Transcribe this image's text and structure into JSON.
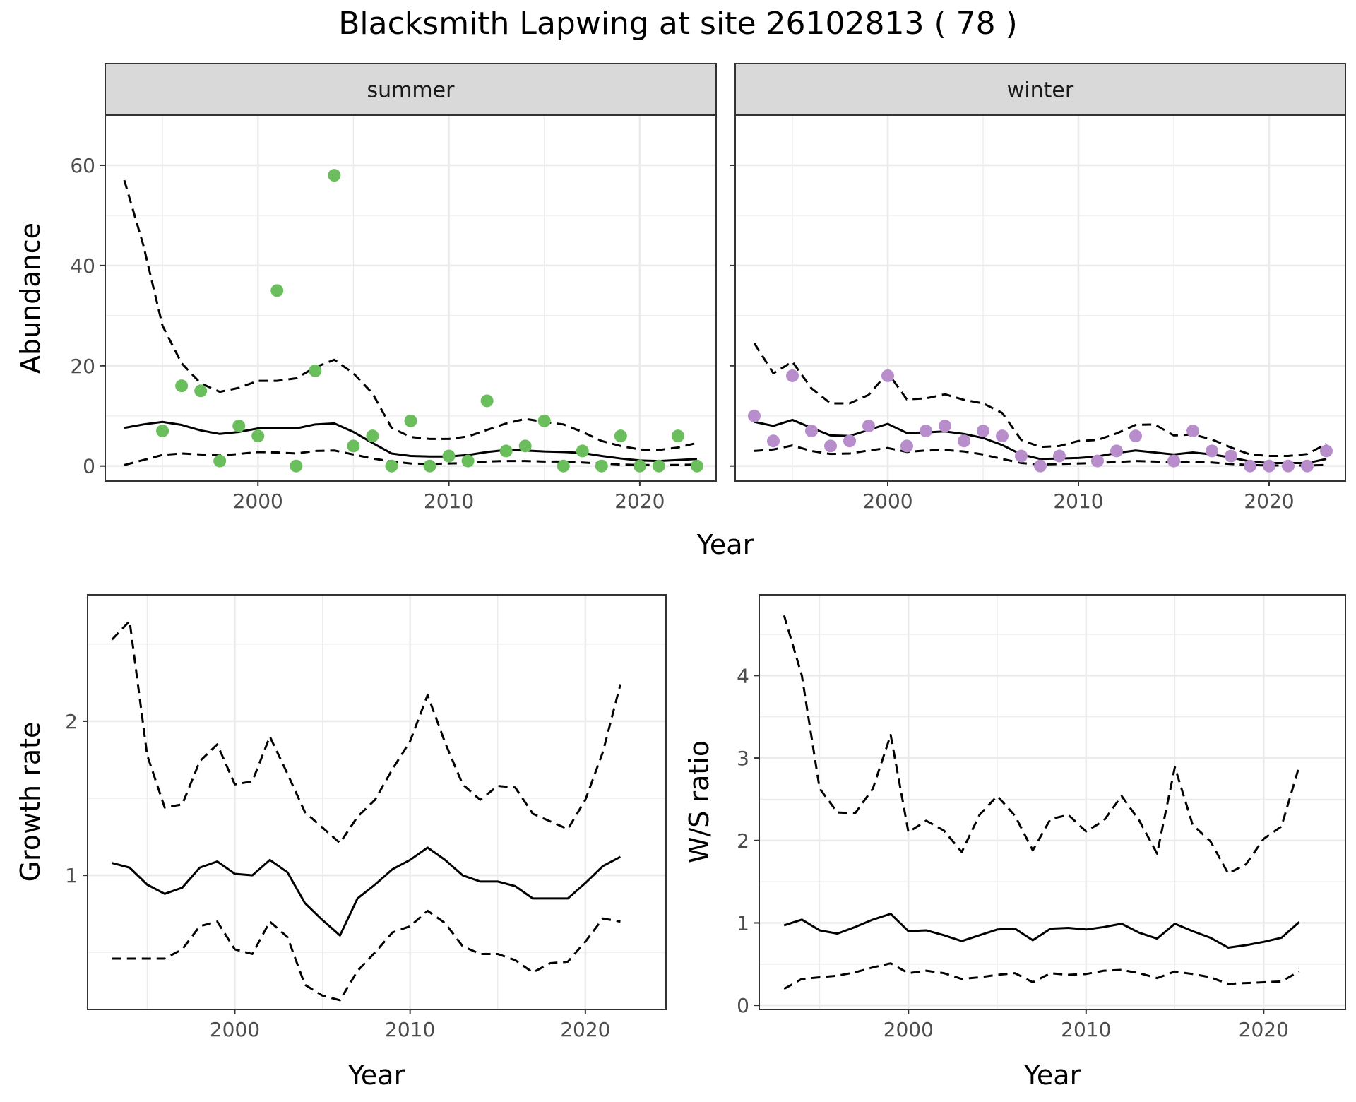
{
  "figure": {
    "title": "Blacksmith Lapwing at site 26102813 ( 78 )"
  },
  "colors": {
    "summer_points": "#6abf5c",
    "winter_points": "#b88dcc",
    "line": "#000000",
    "strip_fill": "#d9d9d9",
    "grid": "#ebebeb"
  },
  "chart_data": [
    {
      "id": "abundance",
      "type": "scatter",
      "ylabel": "Abundance",
      "xlabel": "Year",
      "xlim": [
        1992,
        2024
      ],
      "ylim": [
        -3,
        70
      ],
      "x_ticks": [
        2000,
        2010,
        2020
      ],
      "y_ticks": [
        0,
        20,
        40,
        60
      ],
      "grid": true,
      "facets": [
        {
          "name": "summer",
          "observed": {
            "x": [
              1995,
              1996,
              1997,
              1998,
              1999,
              2000,
              2001,
              2002,
              2003,
              2004,
              2005,
              2006,
              2007,
              2008,
              2009,
              2010,
              2011,
              2012,
              2013,
              2014,
              2015,
              2016,
              2017,
              2018,
              2019,
              2020,
              2021,
              2022,
              2023
            ],
            "y": [
              7,
              16,
              15,
              1,
              8,
              6,
              35,
              0,
              19,
              58,
              4,
              6,
              0,
              9,
              0,
              2,
              1,
              13,
              3,
              4,
              9,
              0,
              3,
              0,
              6,
              0,
              0,
              6,
              0
            ]
          },
          "fit": {
            "x": [
              1993,
              1994,
              1995,
              1996,
              1997,
              1998,
              1999,
              2000,
              2001,
              2002,
              2003,
              2004,
              2005,
              2006,
              2007,
              2008,
              2009,
              2010,
              2011,
              2012,
              2013,
              2014,
              2015,
              2016,
              2017,
              2018,
              2019,
              2020,
              2021,
              2022,
              2023
            ],
            "mean": [
              7.6,
              8.3,
              8.8,
              8.2,
              7.1,
              6.4,
              6.8,
              7.5,
              7.5,
              7.5,
              8.3,
              8.5,
              6.8,
              4.6,
              2.5,
              2.0,
              1.9,
              1.9,
              2.2,
              2.8,
              3.2,
              3.1,
              2.9,
              2.8,
              2.6,
              2.0,
              1.5,
              1.1,
              1.0,
              1.2,
              1.4
            ],
            "lower": [
              0.2,
              1.2,
              2.2,
              2.5,
              2.3,
              2.1,
              2.4,
              2.8,
              2.7,
              2.5,
              3.0,
              3.1,
              2.3,
              1.5,
              0.9,
              0.5,
              0.4,
              0.5,
              0.6,
              0.9,
              1.0,
              1.0,
              0.9,
              0.9,
              0.7,
              0.5,
              0.3,
              0.2,
              0.2,
              0.2,
              0.3
            ],
            "upper": [
              57,
              44,
              28,
              20.5,
              16.5,
              14.8,
              15.6,
              17.0,
              17.0,
              17.5,
              19.7,
              21.2,
              18.5,
              14.5,
              7.6,
              5.8,
              5.4,
              5.4,
              5.9,
              7.2,
              8.5,
              9.4,
              8.8,
              8.3,
              6.8,
              5.0,
              4.0,
              3.3,
              3.2,
              3.7,
              4.6
            ]
          }
        },
        {
          "name": "winter",
          "observed": {
            "x": [
              1993,
              1994,
              1995,
              1996,
              1997,
              1998,
              1999,
              2000,
              2001,
              2002,
              2003,
              2004,
              2005,
              2006,
              2007,
              2008,
              2009,
              2011,
              2012,
              2013,
              2015,
              2016,
              2017,
              2018,
              2019,
              2020,
              2021,
              2022,
              2023
            ],
            "y": [
              10,
              5,
              18,
              7,
              4,
              5,
              8,
              18,
              4,
              7,
              8,
              5,
              7,
              6,
              2,
              0,
              2,
              1,
              3,
              6,
              1,
              7,
              3,
              2,
              0,
              0,
              0,
              0,
              3
            ]
          },
          "fit": {
            "x": [
              1993,
              1994,
              1995,
              1996,
              1997,
              1998,
              1999,
              2000,
              2001,
              2002,
              2003,
              2004,
              2005,
              2006,
              2007,
              2008,
              2009,
              2010,
              2011,
              2012,
              2013,
              2014,
              2015,
              2016,
              2017,
              2018,
              2019,
              2020,
              2021,
              2022,
              2023
            ],
            "mean": [
              8.8,
              8.0,
              9.2,
              7.6,
              6.1,
              6.0,
              7.2,
              8.4,
              6.6,
              6.7,
              6.9,
              6.4,
              5.6,
              4.2,
              2.3,
              1.4,
              1.5,
              1.6,
              1.9,
              2.6,
              3.1,
              2.7,
              2.3,
              2.7,
              2.3,
              1.7,
              0.9,
              0.6,
              0.6,
              0.6,
              1.4
            ],
            "lower": [
              3.0,
              3.3,
              4.1,
              3.0,
              2.4,
              2.5,
              3.1,
              3.6,
              2.8,
              3.1,
              3.2,
              2.9,
              2.3,
              1.4,
              0.6,
              0.3,
              0.4,
              0.5,
              0.6,
              0.8,
              1.0,
              0.9,
              0.7,
              0.9,
              0.7,
              0.4,
              0.2,
              0.1,
              0.1,
              0.1,
              0.2
            ],
            "upper": [
              24.5,
              18.5,
              20.8,
              15.5,
              12.5,
              12.5,
              14.2,
              18.6,
              13.3,
              13.5,
              14.3,
              13.2,
              12.5,
              10.6,
              5.2,
              3.8,
              4.0,
              5.0,
              5.2,
              6.5,
              8.2,
              8.3,
              6.1,
              6.3,
              5.3,
              3.7,
              2.3,
              2.0,
              2.0,
              2.4,
              4.4
            ]
          }
        }
      ]
    },
    {
      "id": "growth",
      "type": "line",
      "ylabel": "Growth rate",
      "xlabel": "Year",
      "xlim": [
        1991.6,
        2024.6
      ],
      "ylim": [
        0.13,
        2.82
      ],
      "x_ticks": [
        2000,
        2010,
        2020
      ],
      "y_ticks": [
        1,
        2
      ],
      "grid": true,
      "x": [
        1993,
        1994,
        1995,
        1996,
        1997,
        1998,
        1999,
        2000,
        2001,
        2002,
        2003,
        2004,
        2005,
        2006,
        2007,
        2008,
        2009,
        2010,
        2011,
        2012,
        2013,
        2014,
        2015,
        2016,
        2017,
        2018,
        2019,
        2020,
        2021,
        2022
      ],
      "series": [
        {
          "role": "mean",
          "values": [
            1.08,
            1.05,
            0.94,
            0.88,
            0.92,
            1.05,
            1.09,
            1.01,
            1.0,
            1.1,
            1.02,
            0.82,
            0.71,
            0.61,
            0.85,
            0.94,
            1.04,
            1.1,
            1.18,
            1.1,
            1.0,
            0.96,
            0.96,
            0.93,
            0.85,
            0.85,
            0.85,
            0.95,
            1.06,
            1.12
          ]
        },
        {
          "role": "lower",
          "values": [
            0.46,
            0.46,
            0.46,
            0.46,
            0.52,
            0.67,
            0.7,
            0.52,
            0.49,
            0.7,
            0.6,
            0.29,
            0.22,
            0.19,
            0.38,
            0.5,
            0.63,
            0.67,
            0.77,
            0.69,
            0.54,
            0.49,
            0.49,
            0.45,
            0.37,
            0.43,
            0.44,
            0.57,
            0.72,
            0.7
          ]
        },
        {
          "role": "upper",
          "values": [
            2.53,
            2.65,
            1.78,
            1.44,
            1.46,
            1.74,
            1.85,
            1.59,
            1.61,
            1.9,
            1.66,
            1.41,
            1.31,
            1.21,
            1.38,
            1.49,
            1.69,
            1.87,
            2.17,
            1.86,
            1.59,
            1.49,
            1.58,
            1.57,
            1.4,
            1.35,
            1.3,
            1.49,
            1.8,
            2.24
          ]
        }
      ]
    },
    {
      "id": "ratio",
      "type": "line",
      "ylabel": "W/S ratio",
      "xlabel": "Year",
      "xlim": [
        1991.6,
        2024.6
      ],
      "ylim": [
        -0.05,
        4.98
      ],
      "x_ticks": [
        2000,
        2010,
        2020
      ],
      "y_ticks": [
        0,
        1,
        2,
        3,
        4
      ],
      "grid": true,
      "x": [
        1993,
        1994,
        1995,
        1996,
        1997,
        1998,
        1999,
        2000,
        2001,
        2002,
        2003,
        2004,
        2005,
        2006,
        2007,
        2008,
        2009,
        2010,
        2011,
        2012,
        2013,
        2014,
        2015,
        2016,
        2017,
        2018,
        2019,
        2020,
        2021,
        2022
      ],
      "series": [
        {
          "role": "mean",
          "values": [
            0.97,
            1.04,
            0.91,
            0.87,
            0.95,
            1.04,
            1.11,
            0.9,
            0.91,
            0.85,
            0.78,
            0.85,
            0.92,
            0.93,
            0.79,
            0.93,
            0.94,
            0.92,
            0.95,
            0.99,
            0.88,
            0.81,
            0.99,
            0.9,
            0.82,
            0.7,
            0.73,
            0.77,
            0.82,
            1.01
          ]
        },
        {
          "role": "lower",
          "values": [
            0.2,
            0.32,
            0.34,
            0.36,
            0.4,
            0.46,
            0.51,
            0.39,
            0.42,
            0.39,
            0.32,
            0.34,
            0.37,
            0.39,
            0.28,
            0.39,
            0.37,
            0.38,
            0.42,
            0.43,
            0.39,
            0.33,
            0.41,
            0.38,
            0.34,
            0.26,
            0.27,
            0.28,
            0.29,
            0.41
          ]
        },
        {
          "role": "upper",
          "values": [
            4.73,
            4.0,
            2.63,
            2.34,
            2.33,
            2.63,
            3.28,
            2.1,
            2.24,
            2.12,
            1.86,
            2.31,
            2.54,
            2.3,
            1.88,
            2.26,
            2.31,
            2.11,
            2.24,
            2.54,
            2.24,
            1.84,
            2.89,
            2.19,
            1.99,
            1.6,
            1.71,
            2.02,
            2.17,
            2.9
          ]
        }
      ]
    }
  ]
}
